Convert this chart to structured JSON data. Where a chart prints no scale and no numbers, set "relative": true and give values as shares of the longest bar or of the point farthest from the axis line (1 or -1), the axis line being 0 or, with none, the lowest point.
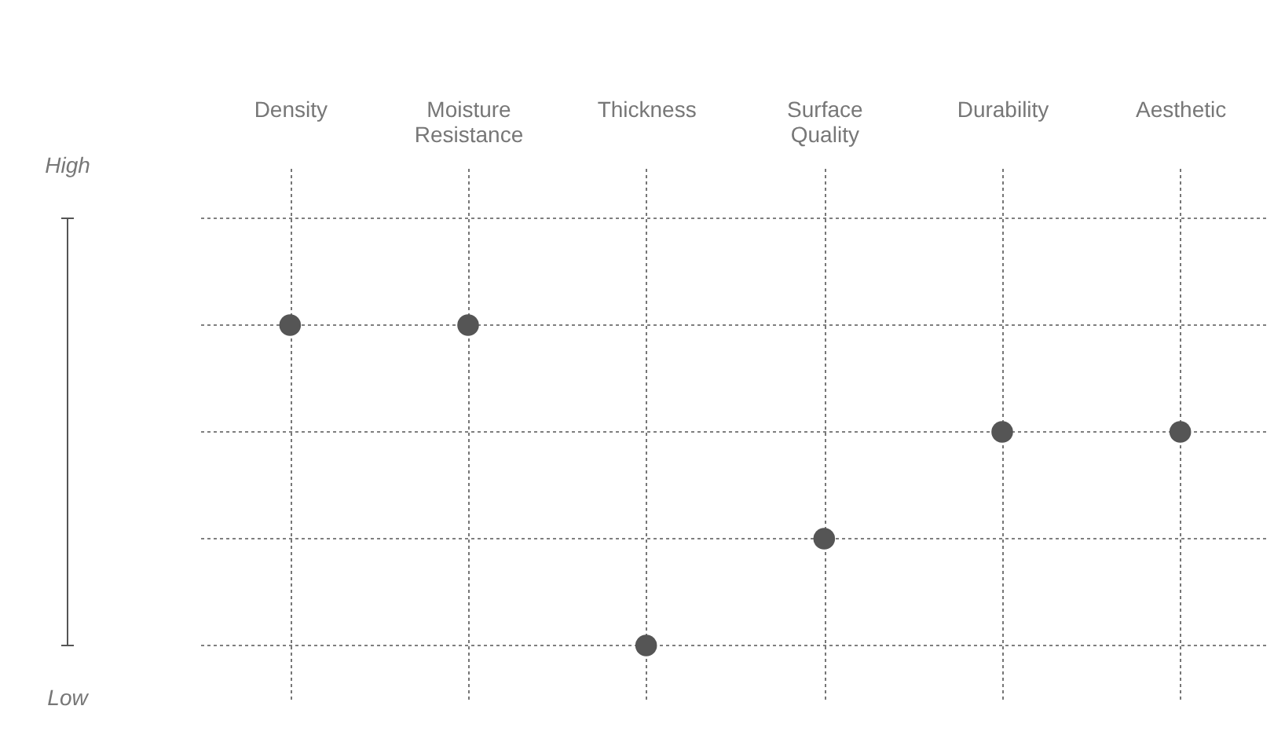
{
  "chart_data": {
    "type": "scatter",
    "relative": true,
    "categories": [
      "Density",
      "Moisture Resistance",
      "Thickness",
      "Surface Quality",
      "Durability",
      "Aesthetic"
    ],
    "values": [
      1,
      1,
      0,
      0.3333,
      0.6667,
      0.6667
    ],
    "color": "#555555",
    "marker": "circle",
    "grid": true,
    "annotations": [
      "High",
      "Low"
    ]
  }
}
